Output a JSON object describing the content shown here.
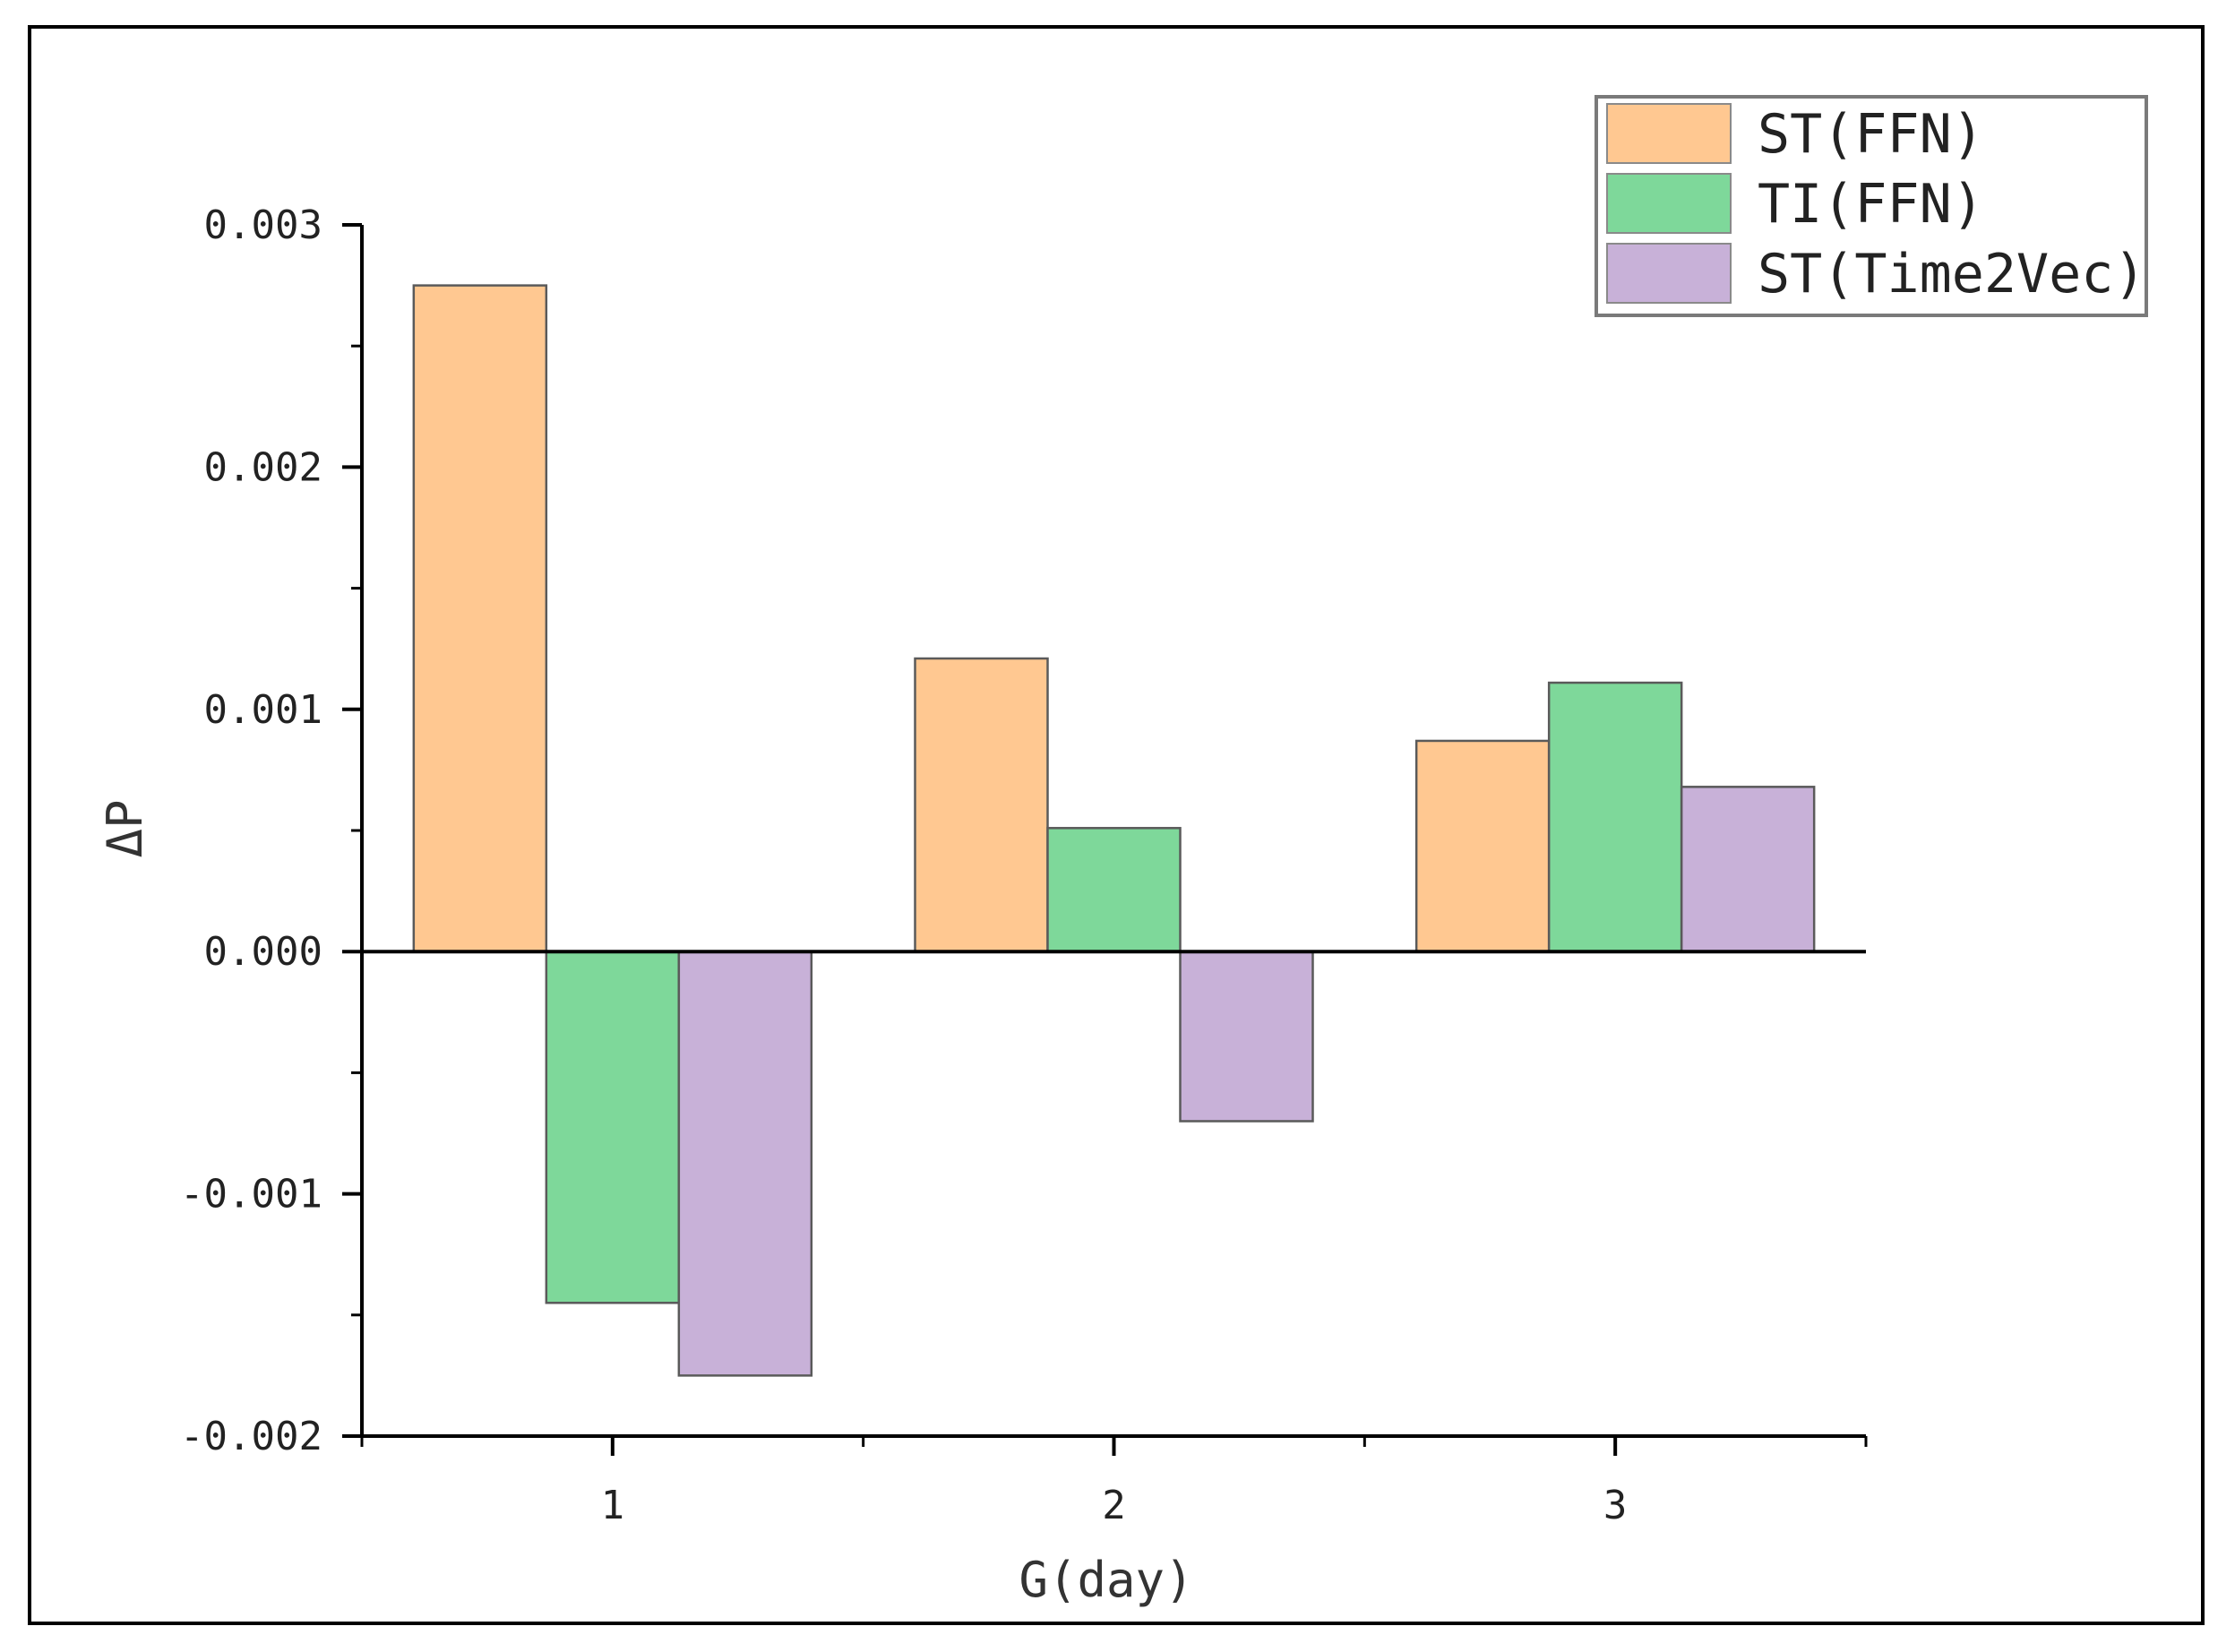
{
  "chart_data": {
    "type": "bar",
    "title": "",
    "xlabel": "G(day)",
    "ylabel": "ΔP",
    "categories": [
      "1",
      "2",
      "3"
    ],
    "series": [
      {
        "name": "ST(FFN)",
        "color": "#FFC891",
        "values": [
          0.00275,
          0.00121,
          0.00087
        ]
      },
      {
        "name": "TI(FFN)",
        "color": "#7ED89A",
        "values": [
          -0.00145,
          0.00051,
          0.00111
        ]
      },
      {
        "name": "ST(Time2Vec)",
        "color": "#C8B1D8",
        "values": [
          -0.00175,
          -0.0007,
          0.00068
        ]
      }
    ],
    "ylim": [
      -0.002,
      0.003
    ],
    "yticks": [
      "0.003",
      "0.002",
      "0.001",
      "0.000",
      "-0.001",
      "-0.002"
    ],
    "ytick_values": [
      0.003,
      0.002,
      0.001,
      0.0,
      -0.001,
      -0.002
    ],
    "legend_position": "top-right",
    "grid": false
  }
}
